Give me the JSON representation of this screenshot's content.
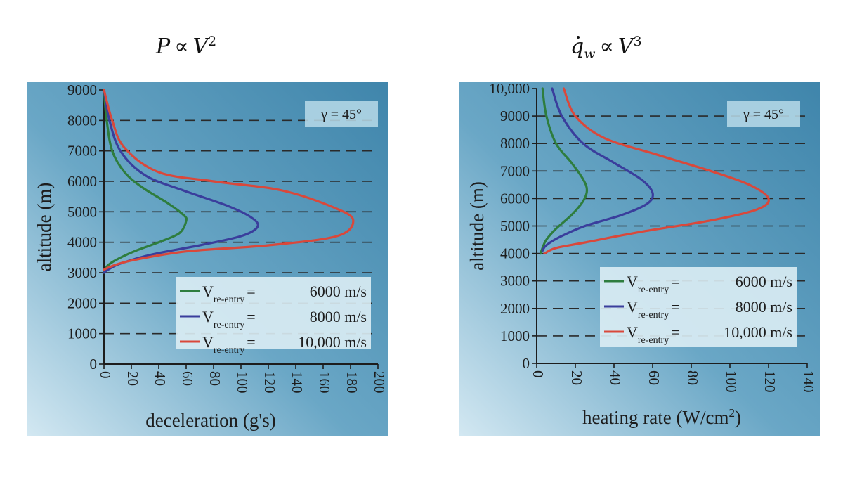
{
  "formulas": {
    "left": {
      "lhs": "P",
      "op": "∝",
      "rhs": "V",
      "exp": "2"
    },
    "right": {
      "lhs": "q",
      "sub": "w",
      "op": "∝",
      "rhs": "V",
      "exp": "3"
    }
  },
  "colors": {
    "green": "#2e7d3e",
    "blue": "#3a3e9c",
    "red": "#d9483b"
  },
  "chart_data": [
    {
      "type": "line",
      "title": "P ∝ V²",
      "xlabel": "deceleration (g's)",
      "ylabel": "altitude (m)",
      "xlim": [
        0,
        200
      ],
      "ylim": [
        0,
        9000
      ],
      "xticks": [
        "0",
        "20",
        "40",
        "60",
        "80",
        "100",
        "120",
        "140",
        "160",
        "180",
        "200"
      ],
      "yticks": [
        "0",
        "1000",
        "2000",
        "3000",
        "4000",
        "5000",
        "6000",
        "7000",
        "8000",
        "9000"
      ],
      "grid": "horizontal dashed",
      "annotation": "γ = 45°",
      "legend_position": "bottom-right",
      "series": [
        {
          "name": "V re-entry = 6000 m/s",
          "sub": "re-entry",
          "eq": "=",
          "value": "6000 m/s",
          "color": "#2e7d3e",
          "points": [
            [
              0,
              9000
            ],
            [
              2,
              8000
            ],
            [
              6,
              7000
            ],
            [
              15,
              6300
            ],
            [
              28,
              5800
            ],
            [
              46,
              5300
            ],
            [
              58,
              4900
            ],
            [
              60,
              4700
            ],
            [
              55,
              4300
            ],
            [
              40,
              4000
            ],
            [
              22,
              3700
            ],
            [
              8,
              3400
            ],
            [
              2,
              3200
            ],
            [
              0,
              3000
            ]
          ]
        },
        {
          "name": "V re-entry = 8000 m/s",
          "sub": "re-entry",
          "eq": "=",
          "value": "8000 m/s",
          "color": "#3a3e9c",
          "points": [
            [
              0,
              9000
            ],
            [
              4,
              8000
            ],
            [
              12,
              7000
            ],
            [
              30,
              6200
            ],
            [
              58,
              5700
            ],
            [
              90,
              5200
            ],
            [
              108,
              4800
            ],
            [
              112,
              4500
            ],
            [
              100,
              4200
            ],
            [
              70,
              3900
            ],
            [
              35,
              3600
            ],
            [
              12,
              3300
            ],
            [
              3,
              3100
            ],
            [
              0,
              3000
            ]
          ]
        },
        {
          "name": "V re-entry = 10,000 m/s",
          "sub": "re-entry",
          "eq": "=",
          "value": "10,000 m/s",
          "color": "#d9483b",
          "points": [
            [
              0,
              9000
            ],
            [
              6,
              8000
            ],
            [
              15,
              7100
            ],
            [
              40,
              6300
            ],
            [
              80,
              6000
            ],
            [
              130,
              5700
            ],
            [
              170,
              5100
            ],
            [
              182,
              4700
            ],
            [
              170,
              4200
            ],
            [
              120,
              3900
            ],
            [
              60,
              3700
            ],
            [
              20,
              3400
            ],
            [
              5,
              3200
            ],
            [
              0,
              3100
            ]
          ]
        }
      ]
    },
    {
      "type": "line",
      "title": "q̇w ∝ V³",
      "xlabel": "heating rate (W/cm",
      "xlabel_sup": "2",
      "xlabel_end": ")",
      "ylabel": "altitude (m)",
      "xlim": [
        0,
        140
      ],
      "ylim": [
        0,
        10000
      ],
      "xticks": [
        "0",
        "20",
        "40",
        "60",
        "80",
        "100",
        "120",
        "140"
      ],
      "yticks": [
        "0",
        "1000",
        "2000",
        "3000",
        "4000",
        "5000",
        "6000",
        "7000",
        "8000",
        "9000",
        "10,000"
      ],
      "grid": "horizontal dashed",
      "annotation": "γ = 45°",
      "legend_position": "bottom-right",
      "series": [
        {
          "name": "V re-entry = 6000 m/s",
          "sub": "re-entry",
          "eq": "=",
          "value": "6000 m/s",
          "color": "#2e7d3e",
          "points": [
            [
              3,
              10000
            ],
            [
              5,
              9000
            ],
            [
              10,
              8000
            ],
            [
              18,
              7300
            ],
            [
              24,
              6700
            ],
            [
              26,
              6300
            ],
            [
              24,
              5900
            ],
            [
              18,
              5400
            ],
            [
              10,
              4900
            ],
            [
              5,
              4500
            ],
            [
              3,
              4200
            ],
            [
              2,
              4000
            ]
          ]
        },
        {
          "name": "V re-entry = 8000 m/s",
          "sub": "re-entry",
          "eq": "=",
          "value": "8000 m/s",
          "color": "#3a3e9c",
          "points": [
            [
              8,
              10000
            ],
            [
              13,
              9000
            ],
            [
              24,
              8000
            ],
            [
              40,
              7300
            ],
            [
              54,
              6700
            ],
            [
              60,
              6200
            ],
            [
              57,
              5800
            ],
            [
              44,
              5400
            ],
            [
              25,
              5000
            ],
            [
              12,
              4600
            ],
            [
              5,
              4300
            ],
            [
              3,
              4100
            ]
          ]
        },
        {
          "name": "V re-entry = 10,000 m/s",
          "sub": "re-entry",
          "eq": "=",
          "value": "10,000 m/s",
          "color": "#d9483b",
          "points": [
            [
              14,
              10000
            ],
            [
              20,
              9000
            ],
            [
              35,
              8200
            ],
            [
              62,
              7600
            ],
            [
              90,
              7000
            ],
            [
              110,
              6500
            ],
            [
              120,
              6000
            ],
            [
              114,
              5600
            ],
            [
              90,
              5200
            ],
            [
              55,
              4800
            ],
            [
              25,
              4400
            ],
            [
              10,
              4200
            ],
            [
              4,
              4000
            ]
          ]
        }
      ]
    }
  ]
}
